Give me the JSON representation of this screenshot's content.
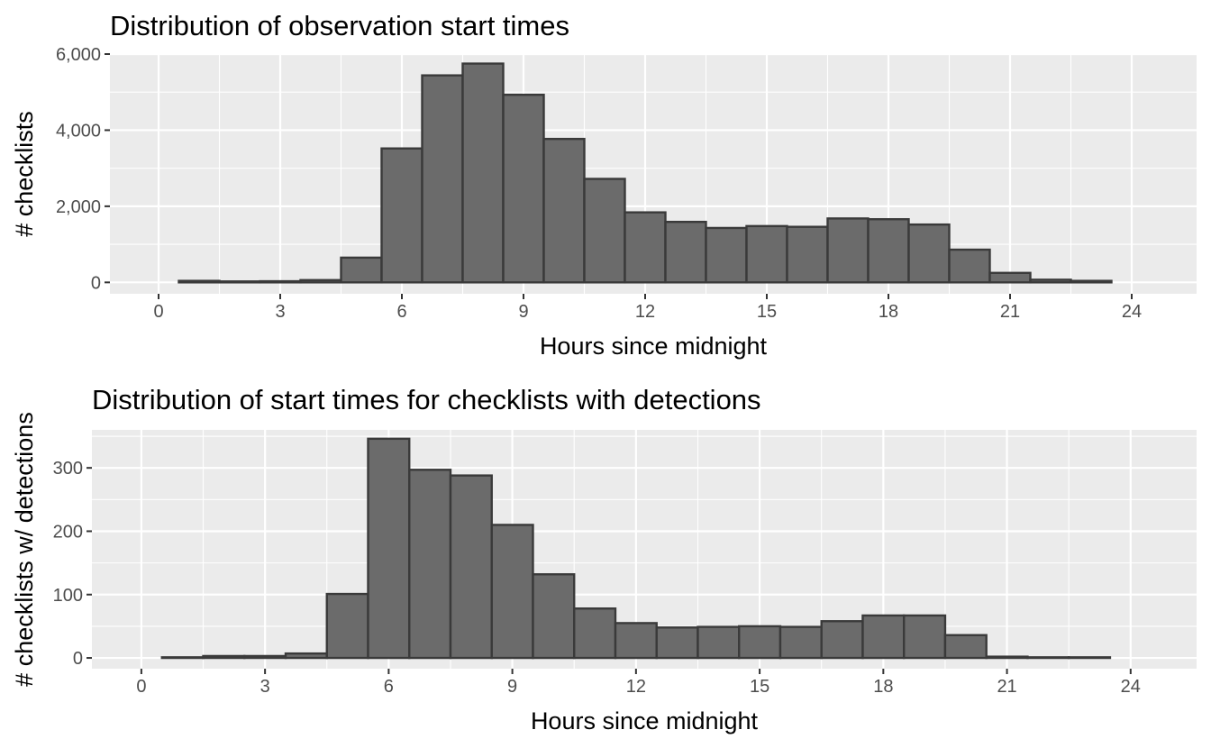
{
  "chart_data": [
    {
      "type": "bar",
      "title": "Distribution of observation start times",
      "xlabel": "Hours since midnight",
      "ylabel": "# checklists",
      "x": [
        1,
        2,
        3,
        4,
        5,
        6,
        7,
        8,
        9,
        10,
        11,
        12,
        13,
        14,
        15,
        16,
        17,
        18,
        19,
        20,
        21,
        22,
        23
      ],
      "values": [
        40,
        25,
        30,
        60,
        650,
        3520,
        5440,
        5750,
        4930,
        3770,
        2720,
        1840,
        1590,
        1430,
        1480,
        1460,
        1680,
        1660,
        1520,
        860,
        250,
        70,
        40
      ],
      "xlim": [
        -1.2,
        25.6
      ],
      "ylim": [
        -300,
        6000
      ],
      "xticks": [
        0,
        3,
        6,
        9,
        12,
        15,
        18,
        21,
        24
      ],
      "xtick_labels": [
        "0",
        "3",
        "6",
        "9",
        "12",
        "15",
        "18",
        "21",
        "24"
      ],
      "yticks": [
        0,
        2000,
        4000,
        6000
      ],
      "ytick_labels": [
        "0",
        "2,000",
        "4,000",
        "6,000"
      ],
      "grid": true
    },
    {
      "type": "bar",
      "title": "Distribution of start times for checklists with detections",
      "xlabel": "Hours since midnight",
      "ylabel": "# checklists w/ detections",
      "x": [
        1,
        2,
        3,
        4,
        5,
        6,
        7,
        8,
        9,
        10,
        11,
        12,
        13,
        14,
        15,
        16,
        17,
        18,
        19,
        20,
        21,
        22,
        23
      ],
      "values": [
        1,
        3,
        3,
        7,
        101,
        346,
        297,
        288,
        210,
        132,
        78,
        55,
        48,
        49,
        50,
        49,
        58,
        67,
        67,
        36,
        2,
        1,
        1
      ],
      "xlim": [
        -1.2,
        25.6
      ],
      "ylim": [
        -17,
        360
      ],
      "xticks": [
        0,
        3,
        6,
        9,
        12,
        15,
        18,
        21,
        24
      ],
      "xtick_labels": [
        "0",
        "3",
        "6",
        "9",
        "12",
        "15",
        "18",
        "21",
        "24"
      ],
      "yticks": [
        0,
        100,
        200,
        300
      ],
      "ytick_labels": [
        "0",
        "100",
        "200",
        "300"
      ],
      "grid": true
    }
  ]
}
